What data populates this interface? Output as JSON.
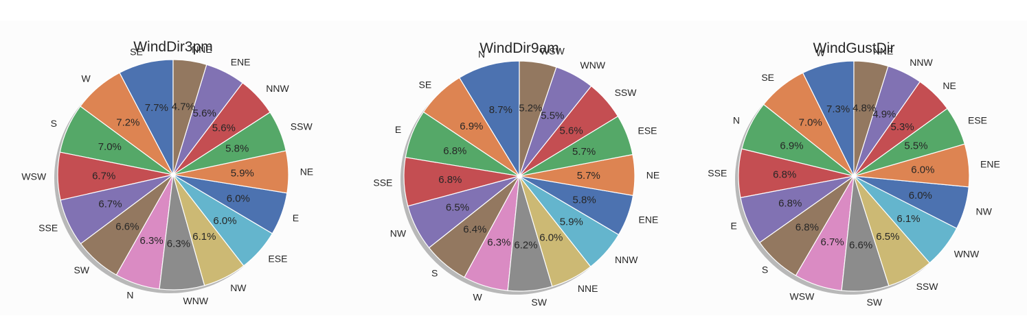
{
  "chart_data": [
    {
      "type": "pie",
      "title": "WindDir3pm",
      "labels": [
        "SE",
        "W",
        "S",
        "WSW",
        "SSE",
        "SW",
        "N",
        "WNW",
        "NW",
        "ESE",
        "E",
        "NE",
        "SSW",
        "NNW",
        "ENE",
        "NNE"
      ],
      "values": [
        7.7,
        7.2,
        7.0,
        6.7,
        6.7,
        6.6,
        6.3,
        6.3,
        6.1,
        6.0,
        6.0,
        5.9,
        5.8,
        5.6,
        5.6,
        4.7
      ],
      "value_labels": [
        "7.7%",
        "7.2%",
        "7.0%",
        "6.7%",
        "6.7%",
        "6.6%",
        "6.3%",
        "6.3%",
        "6.1%",
        "6.0%",
        "6.0%",
        "5.9%",
        "5.8%",
        "5.6%",
        "5.6%",
        "4.7%"
      ],
      "colors": [
        "#4c72b0",
        "#dd8452",
        "#55a868",
        "#c44e52",
        "#8172b3",
        "#937860",
        "#da8bc3",
        "#8c8c8c",
        "#ccb974",
        "#64b5cd",
        "#4c72b0",
        "#dd8452",
        "#55a868",
        "#c44e52",
        "#8172b3",
        "#937860"
      ],
      "start_angle_deg": 90,
      "direction": "counterclockwise",
      "shadow": true
    },
    {
      "type": "pie",
      "title": "WindDir9am",
      "labels": [
        "N",
        "SE",
        "E",
        "SSE",
        "NW",
        "S",
        "W",
        "SW",
        "NNE",
        "NNW",
        "ENE",
        "NE",
        "ESE",
        "SSW",
        "WNW",
        "WSW"
      ],
      "values": [
        8.7,
        6.9,
        6.8,
        6.8,
        6.5,
        6.4,
        6.3,
        6.2,
        6.0,
        5.9,
        5.8,
        5.7,
        5.7,
        5.6,
        5.5,
        5.2
      ],
      "value_labels": [
        "8.7%",
        "6.9%",
        "6.8%",
        "6.8%",
        "6.5%",
        "6.4%",
        "6.3%",
        "6.2%",
        "6.0%",
        "5.9%",
        "5.8%",
        "5.7%",
        "5.7%",
        "5.6%",
        "5.5%",
        "5.2%"
      ],
      "colors": [
        "#4c72b0",
        "#dd8452",
        "#55a868",
        "#c44e52",
        "#8172b3",
        "#937860",
        "#da8bc3",
        "#8c8c8c",
        "#ccb974",
        "#64b5cd",
        "#4c72b0",
        "#dd8452",
        "#55a868",
        "#c44e52",
        "#8172b3",
        "#937860"
      ],
      "start_angle_deg": 90,
      "direction": "counterclockwise",
      "shadow": true
    },
    {
      "type": "pie",
      "title": "WindGustDir",
      "labels": [
        "W",
        "SE",
        "N",
        "SSE",
        "E",
        "S",
        "WSW",
        "SW",
        "SSW",
        "WNW",
        "NW",
        "ENE",
        "ESE",
        "NE",
        "NNW",
        "NNE"
      ],
      "values": [
        7.3,
        7.0,
        6.9,
        6.8,
        6.8,
        6.8,
        6.7,
        6.6,
        6.5,
        6.1,
        6.0,
        6.0,
        5.5,
        5.3,
        4.9,
        4.8
      ],
      "value_labels": [
        "7.3%",
        "7.0%",
        "6.9%",
        "6.8%",
        "6.8%",
        "6.8%",
        "6.7%",
        "6.6%",
        "6.5%",
        "6.1%",
        "6.0%",
        "6.0%",
        "5.5%",
        "5.3%",
        "4.9%",
        "4.8%"
      ],
      "colors": [
        "#4c72b0",
        "#dd8452",
        "#55a868",
        "#c44e52",
        "#8172b3",
        "#937860",
        "#da8bc3",
        "#8c8c8c",
        "#ccb974",
        "#64b5cd",
        "#4c72b0",
        "#dd8452",
        "#55a868",
        "#c44e52",
        "#8172b3",
        "#937860"
      ],
      "start_angle_deg": 90,
      "direction": "counterclockwise",
      "shadow": true
    }
  ]
}
